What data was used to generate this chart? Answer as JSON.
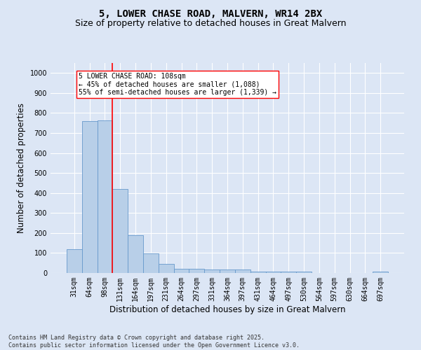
{
  "title": "5, LOWER CHASE ROAD, MALVERN, WR14 2BX",
  "subtitle": "Size of property relative to detached houses in Great Malvern",
  "xlabel": "Distribution of detached houses by size in Great Malvern",
  "ylabel": "Number of detached properties",
  "categories": [
    "31sqm",
    "64sqm",
    "98sqm",
    "131sqm",
    "164sqm",
    "197sqm",
    "231sqm",
    "264sqm",
    "297sqm",
    "331sqm",
    "364sqm",
    "397sqm",
    "431sqm",
    "464sqm",
    "497sqm",
    "530sqm",
    "564sqm",
    "597sqm",
    "630sqm",
    "664sqm",
    "697sqm"
  ],
  "values": [
    120,
    760,
    762,
    420,
    190,
    97,
    47,
    22,
    22,
    17,
    18,
    18,
    7,
    7,
    7,
    7,
    0,
    0,
    0,
    0,
    8
  ],
  "bar_color": "#b8cfe8",
  "bar_edge_color": "#6699cc",
  "vline_x": 2.5,
  "vline_color": "red",
  "annotation_text": "5 LOWER CHASE ROAD: 108sqm\n← 45% of detached houses are smaller (1,088)\n55% of semi-detached houses are larger (1,339) →",
  "annotation_box_color": "white",
  "annotation_box_edge_color": "red",
  "ylim": [
    0,
    1050
  ],
  "yticks": [
    0,
    100,
    200,
    300,
    400,
    500,
    600,
    700,
    800,
    900,
    1000
  ],
  "background_color": "#dce6f5",
  "grid_color": "white",
  "footer_line1": "Contains HM Land Registry data © Crown copyright and database right 2025.",
  "footer_line2": "Contains public sector information licensed under the Open Government Licence v3.0.",
  "title_fontsize": 10,
  "subtitle_fontsize": 9,
  "tick_fontsize": 7,
  "axis_label_fontsize": 8.5,
  "footer_fontsize": 6
}
